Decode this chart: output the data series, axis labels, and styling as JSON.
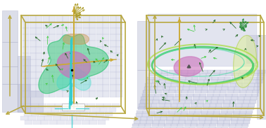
{
  "bg_color": "#ffffff",
  "box_color": "#b8a840",
  "grid_face": "#c8cce0",
  "grid_edge": "#a8acd0",
  "step_face": "#c0c4d8",
  "step_edge": "#a0a4c0",
  "left": {
    "blob_green": "#40cc80",
    "blob_green2": "#30bb70",
    "blob_teal": "#40ccbb",
    "blob_orange": "#cc9955",
    "pink": "#cc70bb",
    "teal_line": "#30cccc",
    "gold": "#ccaa33",
    "vec_dark": "#226622",
    "vec_bright": "#44cc44",
    "vec_gold": "#aa9922"
  },
  "right": {
    "ring_green": "#44cc66",
    "ring_lime": "#aadd44",
    "yellow_disk": "#ddee99",
    "pink": "#cc70bb",
    "gold": "#ccaa33",
    "vec_dark": "#226622",
    "vec_bright": "#44cc44",
    "teal": "#33bbbb"
  }
}
